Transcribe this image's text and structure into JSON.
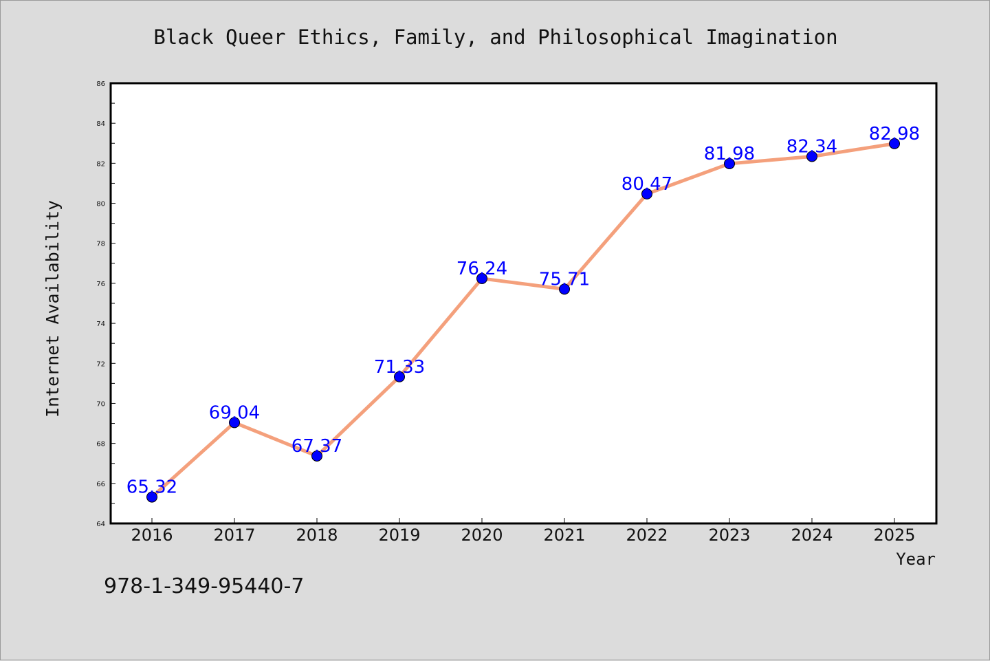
{
  "colors": {
    "line": "#f4a07c",
    "marker": "#0000ff",
    "data_label": "#0000ff",
    "plot_background": "#ffffff",
    "figure_background": "#dcdcdc"
  },
  "footer": {
    "isbn": "978-1-349-95440-7"
  },
  "chart_data": {
    "type": "line",
    "title": "Black Queer Ethics, Family, and Philosophical Imagination",
    "xlabel": "Year",
    "ylabel": "Internet Availability",
    "categories": [
      "2016",
      "2017",
      "2018",
      "2019",
      "2020",
      "2021",
      "2022",
      "2023",
      "2024",
      "2025"
    ],
    "series": [
      {
        "values": [
          65.32,
          69.04,
          67.37,
          71.33,
          76.24,
          75.71,
          80.47,
          81.98,
          82.34,
          82.98
        ],
        "labels": [
          "65.32",
          "69.04",
          "67.37",
          "71.33",
          "76.24",
          "75.71",
          "80.47",
          "81.98",
          "82.34",
          "82.98"
        ]
      }
    ],
    "ylim": [
      64,
      86
    ],
    "yticks": [
      "64",
      "66",
      "68",
      "70",
      "72",
      "74",
      "76",
      "78",
      "80",
      "82",
      "84",
      "86"
    ],
    "grid": false,
    "legend": "none"
  }
}
